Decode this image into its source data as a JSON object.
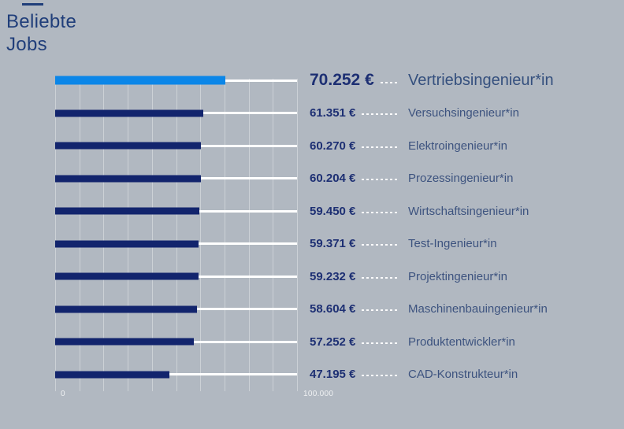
{
  "page": {
    "background": "#b1b8c1"
  },
  "header": {
    "title_line1": "Beliebte",
    "title_line2": "Jobs",
    "accent_color": "#203e7a"
  },
  "chart_data": {
    "type": "bar",
    "orientation": "horizontal",
    "title": "Beliebte Jobs",
    "xlabel": "",
    "ylabel": "",
    "xlim": [
      0,
      100000
    ],
    "grid_step": 10000,
    "grid": true,
    "x_tick_labels": [
      "0",
      "100.000"
    ],
    "highlight_index": 0,
    "bar_color": "#12246d",
    "highlight_color": "#0b86e8",
    "categories": [
      "Vertriebsingenieur*in",
      "Versuchsingenieur*in",
      "Elektroingenieur*in",
      "Prozessingenieur*in",
      "Wirtschaftsingenieur*in",
      "Test-Ingenieur*in",
      "Projektingenieur*in",
      "Maschinenbauingenieur*in",
      "Produktentwickler*in",
      "CAD-Konstrukteur*in"
    ],
    "values": [
      70252,
      61351,
      60270,
      60204,
      59450,
      59371,
      59232,
      58604,
      57252,
      47195
    ],
    "value_labels": [
      "70.252 €",
      "61.351 €",
      "60.270 €",
      "60.204 €",
      "59.450 €",
      "59.371 €",
      "59.232 €",
      "58.604 €",
      "57.252 €",
      "47.195 €"
    ]
  }
}
